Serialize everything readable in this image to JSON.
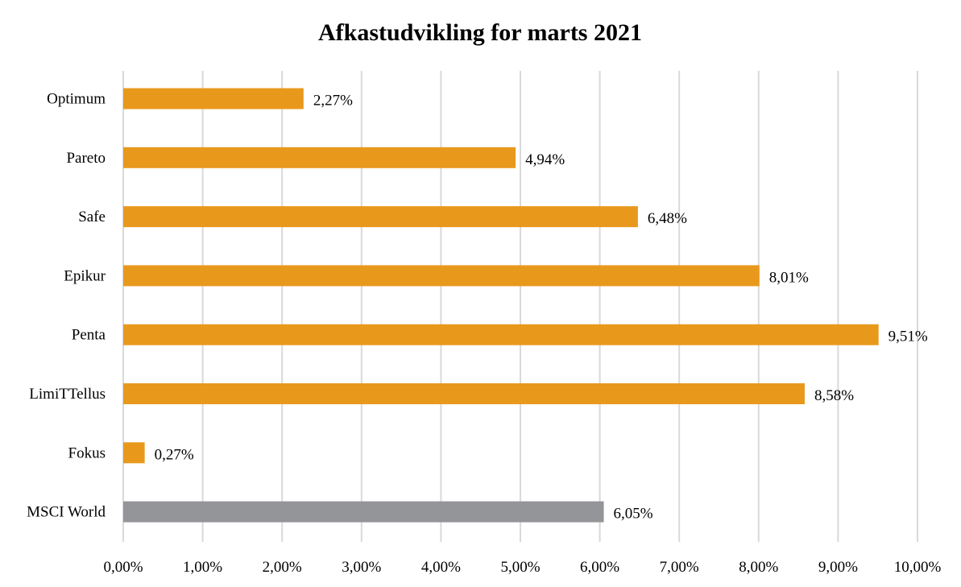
{
  "chart_data": {
    "type": "bar",
    "orientation": "horizontal",
    "title": "Afkastudvikling for marts 2021",
    "categories": [
      "Optimum",
      "Pareto",
      "Safe",
      "Epikur",
      "Penta",
      "LimiTTellus",
      "Fokus",
      "MSCI World"
    ],
    "values": [
      2.27,
      4.94,
      6.48,
      8.01,
      9.51,
      8.58,
      0.27,
      6.05
    ],
    "value_labels": [
      "2,27%",
      "4,94%",
      "6,48%",
      "8,01%",
      "9,51%",
      "8,58%",
      "0,27%",
      "6,05%"
    ],
    "bar_colors": [
      "#E8991C",
      "#E8991C",
      "#E8991C",
      "#E8991C",
      "#E8991C",
      "#E8991C",
      "#E8991C",
      "#949598"
    ],
    "xlim": [
      0,
      10
    ],
    "x_ticks": [
      0,
      1,
      2,
      3,
      4,
      5,
      6,
      7,
      8,
      9,
      10
    ],
    "x_tick_labels": [
      "0,00%",
      "1,00%",
      "2,00%",
      "3,00%",
      "4,00%",
      "5,00%",
      "6,00%",
      "7,00%",
      "8,00%",
      "9,00%",
      "10,00%"
    ],
    "grid": "vertical",
    "grid_color": "#D9D9D9",
    "legend": "none"
  }
}
